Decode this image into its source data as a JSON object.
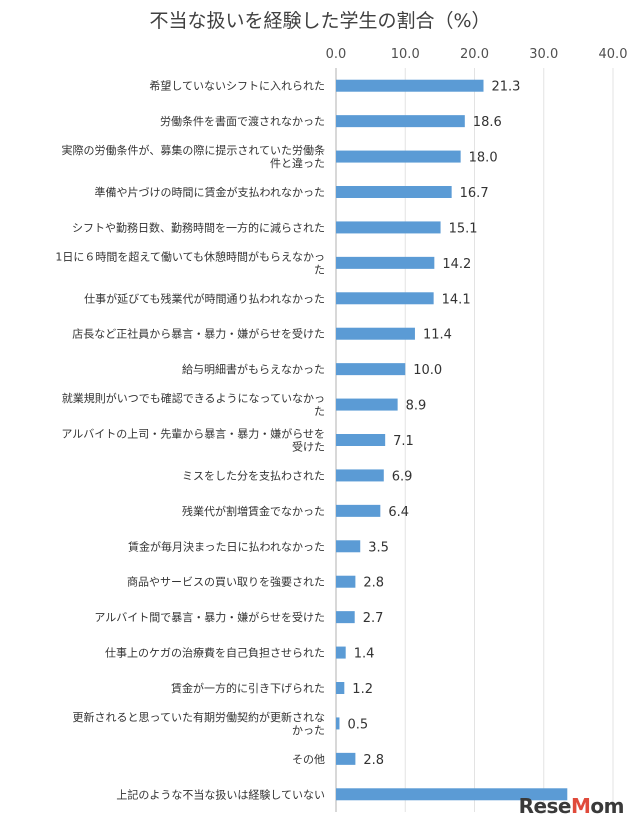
{
  "chart_data": {
    "type": "bar",
    "orientation": "horizontal",
    "title": "不当な扱いを経験した学生の割合（%）",
    "xlim": [
      0,
      40
    ],
    "ticks": [
      "0.0",
      "10.0",
      "20.0",
      "30.0",
      "40.0"
    ],
    "tick_values": [
      0,
      10,
      20,
      30,
      40
    ],
    "grid": true,
    "bar_color": "#5b9bd5",
    "categories": [
      [
        "希望していないシフトに入れられた"
      ],
      [
        "労働条件を書面で渡されなかった"
      ],
      [
        "実際の労働条件が、募集の際に提示されていた労働条",
        "件と違った"
      ],
      [
        "準備や片づけの時間に賃金が支払われなかった"
      ],
      [
        "シフトや勤務日数、勤務時間を一方的に減らされた"
      ],
      [
        "1日に６時間を超えて働いても休憩時間がもらえなかっ",
        "た"
      ],
      [
        "仕事が延びても残業代が時間通り払われなかった"
      ],
      [
        "店長など正社員から暴言・暴力・嫌がらせを受けた"
      ],
      [
        "給与明細書がもらえなかった"
      ],
      [
        "就業規則がいつでも確認できるようになっていなかっ",
        "た"
      ],
      [
        "アルバイトの上司・先輩から暴言・暴力・嫌がらせを",
        "受けた"
      ],
      [
        "ミスをした分を支払わされた"
      ],
      [
        "残業代が割増賃金でなかった"
      ],
      [
        "賃金が毎月決まった日に払われなかった"
      ],
      [
        "商品やサービスの買い取りを強要された"
      ],
      [
        "アルバイト間で暴言・暴力・嫌がらせを受けた"
      ],
      [
        "仕事上のケガの治療費を自己負担させられた"
      ],
      [
        "賃金が一方的に引き下げられた"
      ],
      [
        "更新されると思っていた有期労働契約が更新されな",
        "かった"
      ],
      [
        "その他"
      ],
      [
        "上記のような不当な扱いは経験していない"
      ]
    ],
    "values": [
      21.3,
      18.6,
      18.0,
      16.7,
      15.1,
      14.2,
      14.1,
      11.4,
      10.0,
      8.9,
      7.1,
      6.9,
      6.4,
      3.5,
      2.8,
      2.7,
      1.4,
      1.2,
      0.5,
      2.8,
      33.4
    ],
    "value_labels": [
      "21.3",
      "18.6",
      "18.0",
      "16.7",
      "15.1",
      "14.2",
      "14.1",
      "11.4",
      "10.0",
      "8.9",
      "7.1",
      "6.9",
      "6.4",
      "3.5",
      "2.8",
      "2.7",
      "1.4",
      "1.2",
      "0.5",
      "2.8",
      ""
    ]
  },
  "watermark": {
    "text_main": "Rese",
    "text_accent": "M",
    "text_end": "om"
  }
}
